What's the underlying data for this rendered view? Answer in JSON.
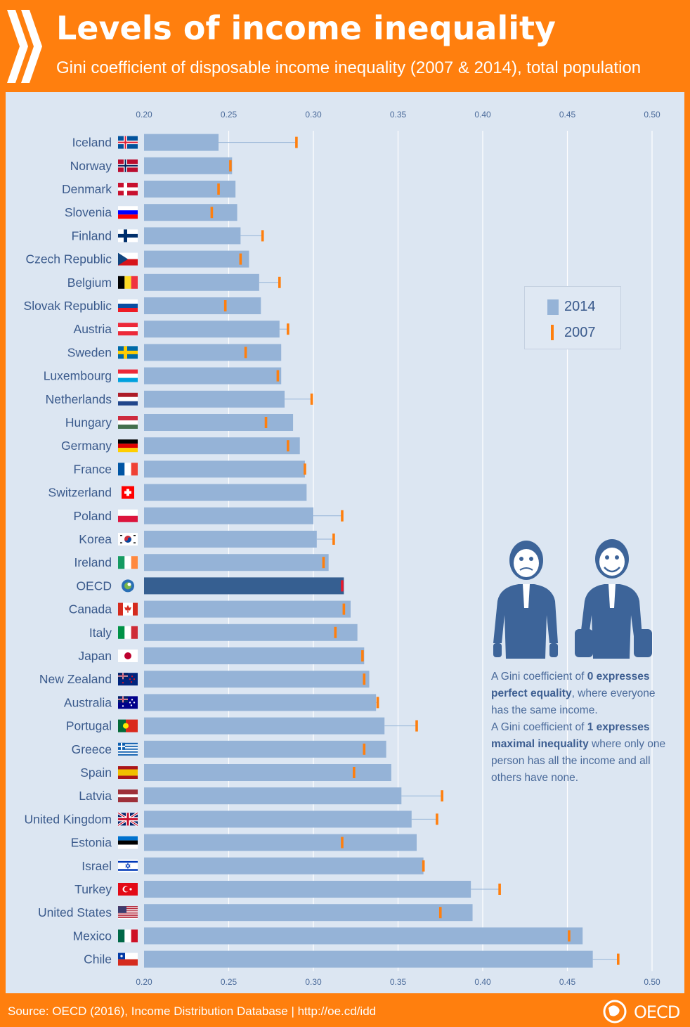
{
  "header": {
    "title": "Levels of income inequality",
    "subtitle": "Gini coefficient of disposable income inequality (2007 & 2014), total population"
  },
  "legend": {
    "series_2014": "2014",
    "series_2007": "2007"
  },
  "note": {
    "p1_a": "A Gini coefficient of ",
    "p1_b": "0 expresses perfect equality",
    "p1_c": ", where everyone has the same income.",
    "p2_a": "A Gini coefficient of ",
    "p2_b": "1 expresses maximal inequality",
    "p2_c": " where only one person has all the income and all others have none."
  },
  "footer": {
    "source": "Source: OECD (2016), Income Distribution Database | http://oe.cd/idd",
    "logo_text": "OECD"
  },
  "colors": {
    "bar": "#95b3d7",
    "oecd_bar": "#365f91",
    "marker": "#ff7f0e",
    "oecd_marker": "#e8192c",
    "background": "#dce6f2",
    "header": "#ff7f0e"
  },
  "chart_data": {
    "type": "bar",
    "orientation": "horizontal",
    "xlim": [
      0.2,
      0.5
    ],
    "ticks": [
      "0.20",
      "0.25",
      "0.30",
      "0.35",
      "0.40",
      "0.45",
      "0.50"
    ],
    "categories": [
      "Iceland",
      "Norway",
      "Denmark",
      "Slovenia",
      "Finland",
      "Czech Republic",
      "Belgium",
      "Slovak Republic",
      "Austria",
      "Sweden",
      "Luxembourg",
      "Netherlands",
      "Hungary",
      "Germany",
      "France",
      "Switzerland",
      "Poland",
      "Korea",
      "Ireland",
      "OECD",
      "Canada",
      "Italy",
      "Japan",
      "New Zealand",
      "Australia",
      "Portugal",
      "Greece",
      "Spain",
      "Latvia",
      "United Kingdom",
      "Estonia",
      "Israel",
      "Turkey",
      "United States",
      "Mexico",
      "Chile"
    ],
    "series": [
      {
        "name": "2014",
        "values": [
          0.244,
          0.252,
          0.254,
          0.255,
          0.257,
          0.262,
          0.268,
          0.269,
          0.28,
          0.281,
          0.281,
          0.283,
          0.288,
          0.292,
          0.295,
          0.296,
          0.3,
          0.302,
          0.309,
          0.318,
          0.322,
          0.326,
          0.33,
          0.333,
          0.337,
          0.342,
          0.343,
          0.346,
          0.352,
          0.358,
          0.361,
          0.365,
          0.393,
          0.394,
          0.459,
          0.465
        ]
      },
      {
        "name": "2007",
        "values": [
          0.29,
          0.251,
          0.244,
          0.24,
          0.27,
          0.257,
          0.28,
          0.248,
          0.285,
          0.26,
          0.279,
          0.299,
          0.272,
          0.285,
          0.295,
          null,
          0.317,
          0.312,
          0.306,
          0.317,
          0.318,
          0.313,
          0.329,
          0.33,
          0.338,
          0.361,
          0.33,
          0.324,
          0.376,
          0.373,
          0.317,
          0.365,
          0.41,
          0.375,
          0.451,
          0.48
        ]
      }
    ]
  }
}
